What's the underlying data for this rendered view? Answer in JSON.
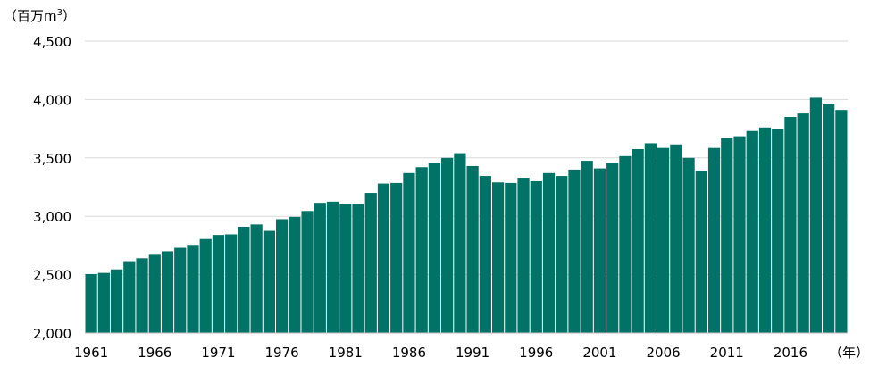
{
  "chart_data": {
    "type": "bar",
    "title": "",
    "ylabel": "（百万m",
    "ylabel_superscript": "3",
    "ylabel_close": "）",
    "xlabel": "（年）",
    "ylim": [
      2000,
      4500
    ],
    "yticks": [
      2000,
      2500,
      3000,
      3500,
      4000,
      4500
    ],
    "ytick_labels": [
      "2,000",
      "2,500",
      "3,000",
      "3,500",
      "4,000",
      "4,500"
    ],
    "xtick_labels": [
      "1961",
      "1966",
      "1971",
      "1976",
      "1981",
      "1986",
      "1991",
      "1996",
      "2001",
      "2006",
      "2011",
      "2016"
    ],
    "xtick_years": [
      1961,
      1966,
      1971,
      1976,
      1981,
      1986,
      1991,
      1996,
      2001,
      2006,
      2011,
      2016
    ],
    "grid": true,
    "legend": "none",
    "bar_color": "#007366",
    "categories": [
      1961,
      1962,
      1963,
      1964,
      1965,
      1966,
      1967,
      1968,
      1969,
      1970,
      1971,
      1972,
      1973,
      1974,
      1975,
      1976,
      1977,
      1978,
      1979,
      1980,
      1981,
      1982,
      1983,
      1984,
      1985,
      1986,
      1987,
      1988,
      1989,
      1990,
      1991,
      1992,
      1993,
      1994,
      1995,
      1996,
      1997,
      1998,
      1999,
      2000,
      2001,
      2002,
      2003,
      2004,
      2005,
      2006,
      2007,
      2008,
      2009,
      2010,
      2011,
      2012,
      2013,
      2014,
      2015,
      2016,
      2017,
      2018,
      2019,
      2020
    ],
    "values": [
      2505,
      2515,
      2545,
      2615,
      2640,
      2670,
      2700,
      2730,
      2755,
      2805,
      2840,
      2845,
      2910,
      2930,
      2875,
      2975,
      2995,
      3045,
      3115,
      3125,
      3105,
      3105,
      3200,
      3280,
      3285,
      3370,
      3420,
      3460,
      3500,
      3540,
      3430,
      3345,
      3290,
      3285,
      3330,
      3300,
      3370,
      3345,
      3400,
      3475,
      3410,
      3460,
      3515,
      3575,
      3625,
      3585,
      3615,
      3500,
      3390,
      3585,
      3670,
      3685,
      3730,
      3760,
      3750,
      3850,
      3880,
      4015,
      3965,
      3910
    ]
  }
}
